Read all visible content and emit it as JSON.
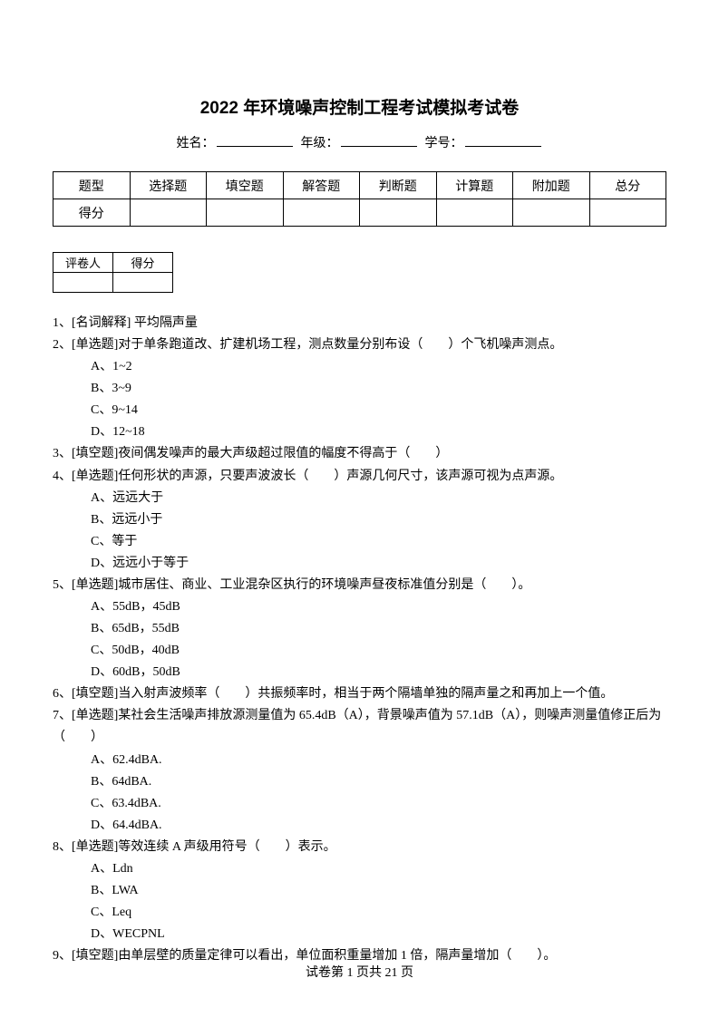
{
  "title": "2022 年环境噪声控制工程考试模拟考试卷",
  "info": {
    "name_label": "姓名：",
    "grade_label": "年级：",
    "id_label": "学号："
  },
  "score_table": {
    "headers": [
      "题型",
      "选择题",
      "填空题",
      "解答题",
      "判断题",
      "计算题",
      "附加题",
      "总分"
    ],
    "row_label": "得分"
  },
  "reviewer_table": {
    "reviewer": "评卷人",
    "score": "得分"
  },
  "questions": {
    "q1": "1、[名词解释] 平均隔声量",
    "q2": "2、[单选题]对于单条跑道改、扩建机场工程，测点数量分别布设（　　）个飞机噪声测点。",
    "q2a": "A、1~2",
    "q2b": "B、3~9",
    "q2c": "C、9~14",
    "q2d": "D、12~18",
    "q3": "3、[填空题]夜间偶发噪声的最大声级超过限值的幅度不得高于（　　）",
    "q4": "4、[单选题]任何形状的声源，只要声波波长（　　）声源几何尺寸，该声源可视为点声源。",
    "q4a": "A、远远大于",
    "q4b": "B、远远小于",
    "q4c": "C、等于",
    "q4d": "D、远远小于等于",
    "q5": "5、[单选题]城市居住、商业、工业混杂区执行的环境噪声昼夜标准值分别是（　　）。",
    "q5a": "A、55dB，45dB",
    "q5b": "B、65dB，55dB",
    "q5c": "C、50dB，40dB",
    "q5d": "D、60dB，50dB",
    "q6": "6、[填空题]当入射声波频率（　　）共振频率时，相当于两个隔墙单独的隔声量之和再加上一个值。",
    "q7": "7、[单选题]某社会生活噪声排放源测量值为 65.4dB（A），背景噪声值为 57.1dB（A），则噪声测量值修正后为（　　）",
    "q7a": "A、62.4dBA.",
    "q7b": "B、64dBA.",
    "q7c": "C、63.4dBA.",
    "q7d": "D、64.4dBA.",
    "q8": "8、[单选题]等效连续 A 声级用符号（　　）表示。",
    "q8a": "A、Ldn",
    "q8b": "B、LWA",
    "q8c": "C、Leq",
    "q8d": "D、WECPNL",
    "q9": "9、[填空题]由单层壁的质量定律可以看出，单位面积重量增加 1 倍，隔声量增加（　　）。"
  },
  "footer": "试卷第 1 页共 21 页"
}
